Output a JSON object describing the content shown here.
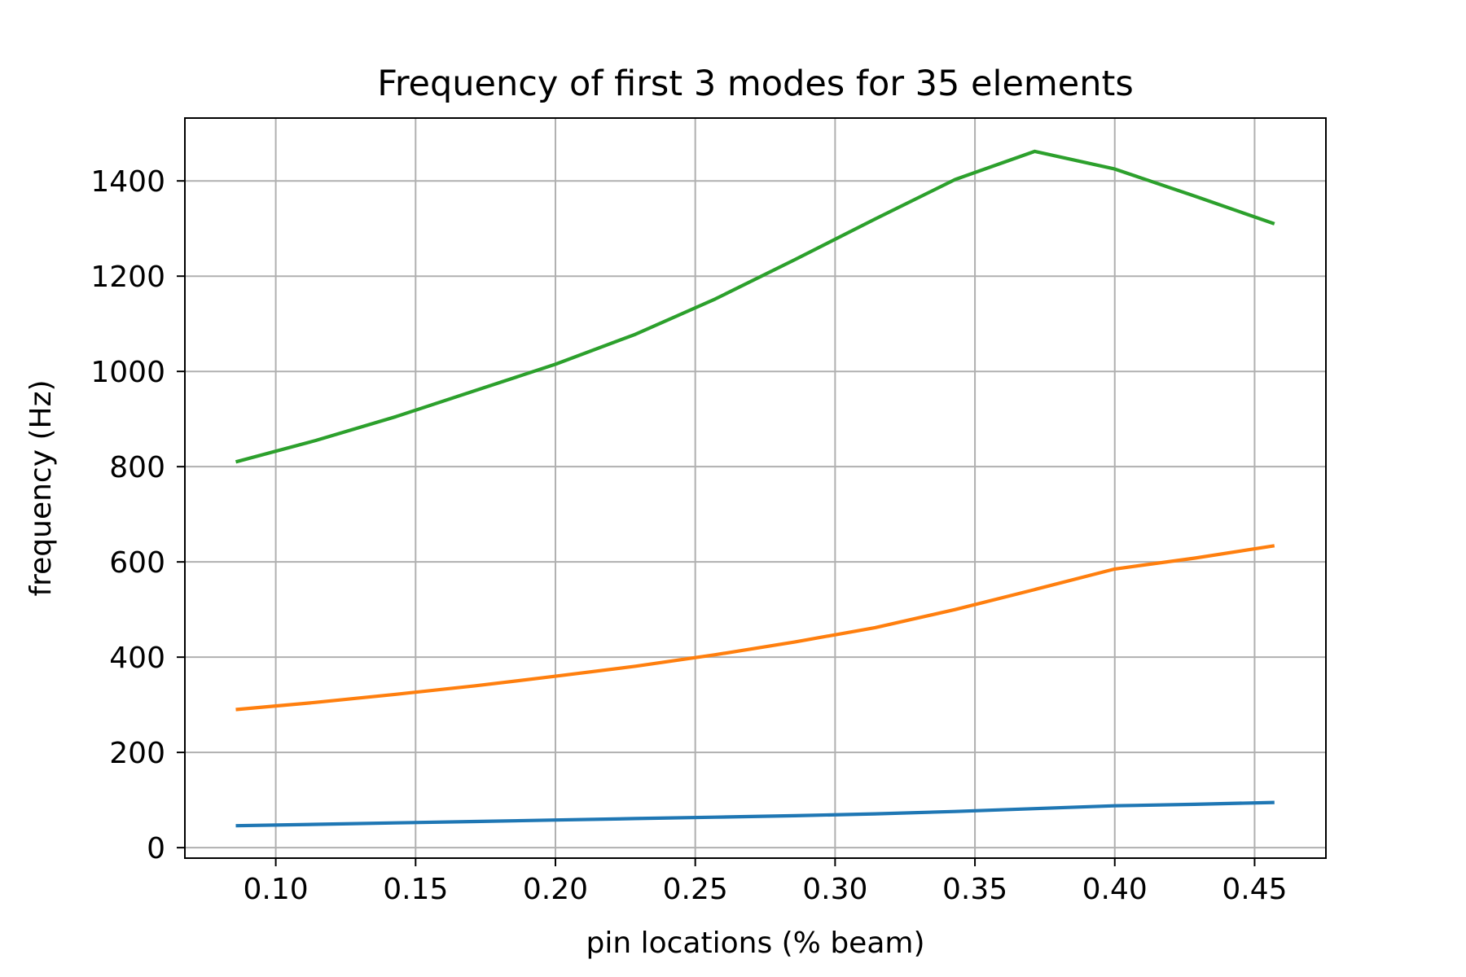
{
  "chart_data": {
    "type": "line",
    "title": "Frequency of first 3 modes for 35 elements",
    "xlabel": "pin locations (% beam)",
    "ylabel": "frequency (Hz)",
    "xlim": [
      0.0675,
      0.4755
    ],
    "ylim": [
      -22,
      1532
    ],
    "grid": true,
    "xticks": [
      0.1,
      0.15,
      0.2,
      0.25,
      0.3,
      0.35,
      0.4,
      0.45
    ],
    "xtick_labels": [
      "0.10",
      "0.15",
      "0.20",
      "0.25",
      "0.30",
      "0.35",
      "0.40",
      "0.45"
    ],
    "yticks": [
      0,
      200,
      400,
      600,
      800,
      1000,
      1200,
      1400
    ],
    "ytick_labels": [
      "0",
      "200",
      "400",
      "600",
      "800",
      "1000",
      "1200",
      "1400"
    ],
    "x": [
      0.0857,
      0.1143,
      0.1429,
      0.1714,
      0.2,
      0.2286,
      0.2571,
      0.2857,
      0.3143,
      0.3429,
      0.3714,
      0.4,
      0.4286,
      0.4571
    ],
    "series": [
      {
        "color": "#1f77b4",
        "values": [
          46,
          49,
          52,
          55,
          58,
          61,
          64,
          67,
          71,
          76,
          82,
          88,
          91,
          95
        ]
      },
      {
        "color": "#ff7f0e",
        "values": [
          290,
          305,
          322,
          340,
          360,
          381,
          405,
          432,
          462,
          500,
          542,
          585,
          608,
          634
        ]
      },
      {
        "color": "#2ca02c",
        "values": [
          810,
          855,
          905,
          960,
          1015,
          1078,
          1152,
          1235,
          1320,
          1403,
          1462,
          1425,
          1368,
          1310
        ]
      }
    ]
  }
}
